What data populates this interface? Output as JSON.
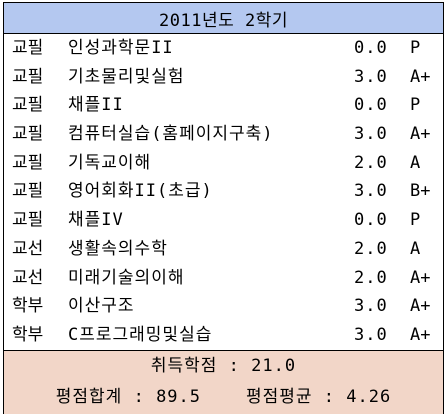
{
  "header": {
    "title": "2011년도 2학기"
  },
  "courses": [
    {
      "category": "교필",
      "name": "인성과학문II",
      "credit": "0.0",
      "grade": "P"
    },
    {
      "category": "교필",
      "name": "기초물리및실험",
      "credit": "3.0",
      "grade": "A+"
    },
    {
      "category": "교필",
      "name": "채플II",
      "credit": "0.0",
      "grade": "P"
    },
    {
      "category": "교필",
      "name": "컴퓨터실습(홈페이지구축)",
      "credit": "3.0",
      "grade": "A+"
    },
    {
      "category": "교필",
      "name": "기독교이해",
      "credit": "2.0",
      "grade": "A"
    },
    {
      "category": "교필",
      "name": "영어회화II(초급)",
      "credit": "3.0",
      "grade": "B+"
    },
    {
      "category": "교필",
      "name": "채플IV",
      "credit": "0.0",
      "grade": "P"
    },
    {
      "category": "교선",
      "name": "생활속의수학",
      "credit": "2.0",
      "grade": "A"
    },
    {
      "category": "교선",
      "name": "미래기술의이해",
      "credit": "2.0",
      "grade": "A+"
    },
    {
      "category": "학부",
      "name": "이산구조",
      "credit": "3.0",
      "grade": "A+"
    },
    {
      "category": "학부",
      "name": "C프로그래밍및실습",
      "credit": "3.0",
      "grade": "A+"
    }
  ],
  "summary": {
    "earned_credits_label": "취득학점",
    "earned_credits_value": "21.0",
    "total_points_label": "평점합계",
    "total_points_value": "89.5",
    "gpa_label": "평점평균",
    "gpa_value": "4.26",
    "separator": ":"
  }
}
